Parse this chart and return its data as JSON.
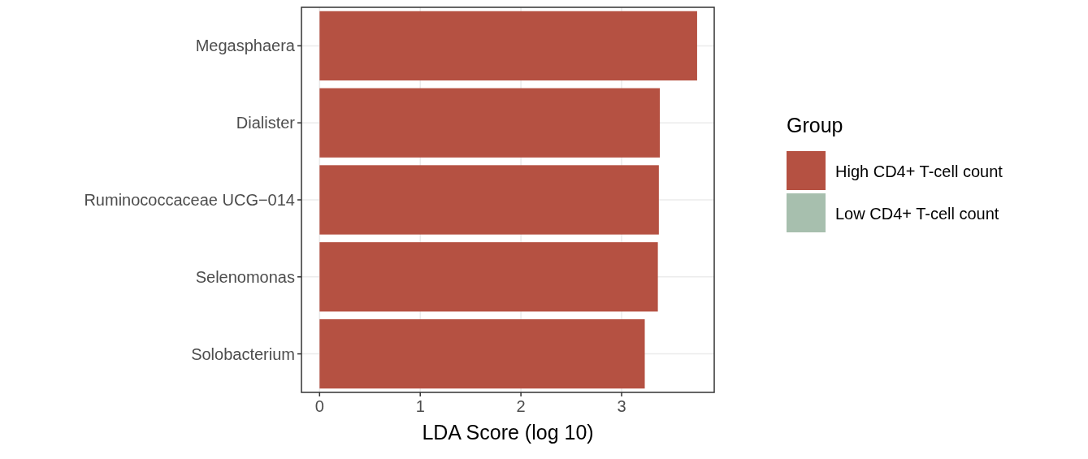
{
  "chart_data": {
    "type": "bar",
    "orientation": "horizontal",
    "xlabel": "LDA Score (log 10)",
    "legend_title": "Group",
    "categories": [
      "Megasphaera",
      "Dialister",
      "Ruminococcaceae UCG−014",
      "Selenomonas",
      "Solobacterium"
    ],
    "series": [
      {
        "name": "High CD4+ T-cell count",
        "color": "#b55142",
        "values": [
          3.75,
          3.38,
          3.37,
          3.36,
          3.23
        ]
      },
      {
        "name": "Low CD4+ T-cell count",
        "color": "#a7bfae",
        "values": [
          null,
          null,
          null,
          null,
          null
        ]
      }
    ],
    "xlim": [
      -0.18,
      3.92
    ],
    "xticks": [
      0,
      1,
      2,
      3
    ],
    "grid": true,
    "legend": "right"
  }
}
